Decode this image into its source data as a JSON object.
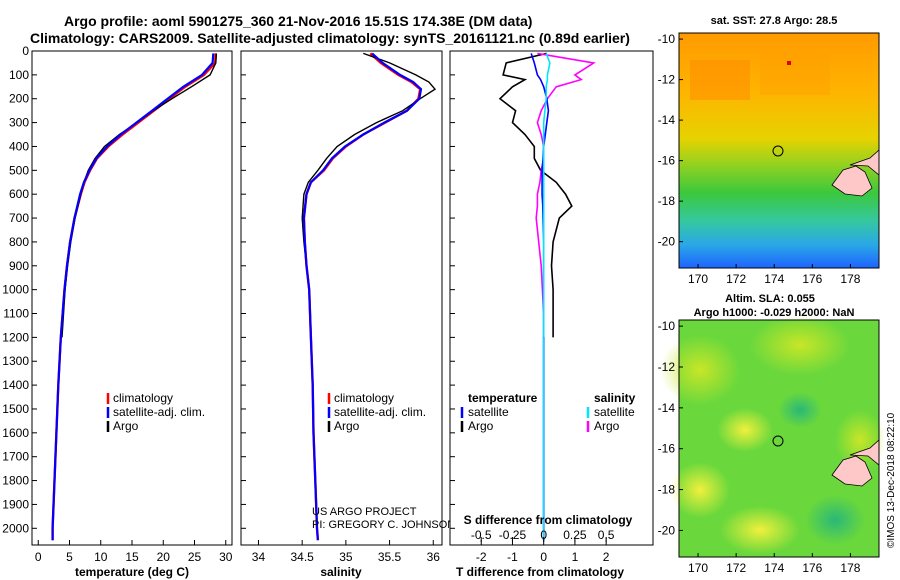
{
  "title": {
    "line1": "Argo profile: aoml 5901275_360 21-Nov-2016 15.51S 174.38E (DM data)",
    "line2": "Climatology: CARS2009. Satellite-adjusted climatology: synTS_20161121.nc (0.89d earlier)"
  },
  "credits": {
    "line1": "US ARGO PROJECT",
    "line2": "PI: GREGORY C. JOHNSON"
  },
  "footer": "©IMOS 13-Dec-2018 08:22:10",
  "colors": {
    "clim": "#ff0000",
    "sat": "#0000ff",
    "argo": "#000000",
    "cyan": "#00e5ff",
    "magenta": "#ff00ff"
  },
  "chart_data": [
    {
      "type": "line",
      "id": "temperature",
      "xlabel": "temperature (deg C)",
      "xlim": [
        -1,
        31
      ],
      "xticks": [
        0,
        5,
        10,
        15,
        20,
        25,
        30
      ],
      "ylim": [
        0,
        2070
      ],
      "yticks": [
        0,
        100,
        200,
        300,
        400,
        500,
        600,
        700,
        800,
        900,
        1000,
        1100,
        1200,
        1300,
        1400,
        1500,
        1600,
        1700,
        1800,
        1900,
        2000
      ],
      "depth": [
        10,
        50,
        100,
        150,
        200,
        250,
        300,
        350,
        400,
        450,
        500,
        550,
        600,
        700,
        800,
        900,
        1000,
        1200,
        1400,
        1600,
        1800,
        2000,
        2050
      ],
      "legend": [
        "climatology",
        "satellite-adj. clim.",
        "Argo"
      ],
      "series": [
        {
          "name": "climatology",
          "values": [
            28.4,
            28.3,
            26.5,
            23.5,
            21.0,
            18.5,
            16.0,
            13.5,
            11.2,
            9.4,
            8.3,
            7.4,
            6.8,
            5.8,
            5.1,
            4.6,
            4.2,
            3.6,
            3.2,
            2.9,
            2.6,
            2.3,
            2.3
          ]
        },
        {
          "name": "satellite-adj. clim.",
          "values": [
            28.0,
            27.9,
            26.2,
            23.2,
            20.7,
            18.2,
            15.7,
            13.2,
            11.0,
            9.3,
            8.2,
            7.3,
            6.7,
            5.8,
            5.1,
            4.6,
            4.2,
            3.6,
            3.2,
            2.9,
            2.6,
            2.3,
            2.3
          ]
        },
        {
          "name": "Argo",
          "values": [
            28.5,
            28.4,
            27.5,
            24.5,
            21.4,
            18.4,
            15.8,
            13.0,
            10.6,
            9.1,
            8.0,
            7.3,
            6.8,
            5.9,
            5.2,
            4.7,
            4.3,
            3.8,
            null,
            null,
            null,
            null,
            null
          ]
        }
      ]
    },
    {
      "type": "line",
      "id": "salinity",
      "xlabel": "salinity",
      "xlim": [
        33.8,
        36.1
      ],
      "xticks": [
        34,
        34.5,
        35,
        35.5,
        36
      ],
      "ylim": [
        0,
        2070
      ],
      "depth": [
        10,
        50,
        100,
        130,
        160,
        200,
        250,
        300,
        350,
        400,
        450,
        500,
        550,
        600,
        700,
        800,
        900,
        1000,
        1200,
        1400,
        1600,
        1800,
        2000,
        2050
      ],
      "legend": [
        "climatology",
        "satellite-adj. clim.",
        "Argo"
      ],
      "series": [
        {
          "name": "climatology",
          "values": [
            35.28,
            35.4,
            35.6,
            35.75,
            35.85,
            35.83,
            35.7,
            35.45,
            35.2,
            35.0,
            34.85,
            34.75,
            34.6,
            34.55,
            34.52,
            34.53,
            34.55,
            34.58,
            34.6,
            34.62,
            34.63,
            34.65,
            34.67,
            34.68
          ]
        },
        {
          "name": "satellite-adj. clim.",
          "values": [
            35.3,
            35.42,
            35.62,
            35.77,
            35.86,
            35.84,
            35.7,
            35.44,
            35.2,
            34.99,
            34.84,
            34.74,
            34.6,
            34.55,
            34.52,
            34.53,
            34.55,
            34.58,
            34.6,
            34.62,
            34.63,
            34.65,
            34.67,
            34.68
          ]
        },
        {
          "name": "Argo",
          "values": [
            35.2,
            35.5,
            35.8,
            35.95,
            36.02,
            35.85,
            35.65,
            35.35,
            35.1,
            34.9,
            34.78,
            34.68,
            34.57,
            34.52,
            34.5,
            34.52,
            34.55,
            34.58,
            34.6,
            null,
            null,
            null,
            null,
            null
          ]
        }
      ]
    },
    {
      "type": "line",
      "id": "differences",
      "xlabel": "T difference from climatology",
      "xlabel2": "S difference from climatology",
      "xlim_T": [
        -3,
        3.5
      ],
      "xticks_T": [
        -2,
        -1,
        0,
        1,
        2
      ],
      "xticks_S": [
        -0.5,
        -0.25,
        0,
        0.25,
        0.5
      ],
      "xtick_labels_S": [
        "-0.5",
        "-0.25",
        "0",
        "0.25",
        "0.5"
      ],
      "S_scale": 4,
      "ylim": [
        0,
        2070
      ],
      "legend_T_title": "temperature",
      "legend_S_title": "salinity",
      "legend_T": [
        "satellite",
        "Argo"
      ],
      "legend_S": [
        "satellite",
        "Argo"
      ],
      "depth": [
        10,
        50,
        100,
        120,
        150,
        200,
        250,
        300,
        350,
        400,
        450,
        500,
        550,
        600,
        650,
        700,
        800,
        900,
        1000,
        1100,
        1200
      ],
      "series": [
        {
          "name": "T satellite",
          "values": [
            -0.4,
            -0.3,
            -0.2,
            -0.1,
            0.0,
            0.1,
            0.15,
            0.1,
            0.05,
            0.0,
            -0.02,
            -0.05,
            -0.05,
            -0.05,
            -0.03,
            -0.02,
            0.0,
            0.0,
            0.0,
            0.0,
            0.0
          ]
        },
        {
          "name": "T Argo",
          "values": [
            0.1,
            -1.2,
            -1.3,
            -0.6,
            -1.0,
            -1.4,
            -0.9,
            -1.0,
            -0.6,
            -0.3,
            -0.3,
            -0.1,
            0.4,
            0.7,
            0.9,
            0.5,
            0.3,
            0.25,
            0.3,
            0.3,
            0.3
          ]
        },
        {
          "name": "S satellite",
          "values": [
            0.02,
            0.05,
            0.03,
            0.03,
            0.02,
            0.02,
            0.01,
            0.0,
            0.0,
            0.0,
            0.0,
            0.0,
            0.0,
            0.0,
            0.0,
            0.0,
            0.0,
            0.0,
            0.0,
            0.0,
            0.0
          ]
        },
        {
          "name": "S Argo",
          "values": [
            -0.05,
            0.4,
            0.25,
            0.3,
            0.1,
            0.03,
            -0.02,
            -0.05,
            -0.02,
            0.0,
            0.0,
            -0.02,
            -0.03,
            -0.05,
            -0.05,
            -0.06,
            -0.04,
            -0.02,
            -0.01,
            0.0,
            0.0
          ]
        }
      ]
    },
    {
      "type": "heatmap",
      "id": "sst-map",
      "title": "sat. SST: 27.8 Argo: 28.5",
      "xticks": [
        170,
        172,
        174,
        176,
        178
      ],
      "yticks": [
        -10,
        -12,
        -14,
        -16,
        -18,
        -20
      ],
      "xlim": [
        169,
        179.5
      ],
      "ylim": [
        -21.3,
        -9.7
      ],
      "argo_position": [
        174.38,
        -15.51
      ]
    },
    {
      "type": "heatmap",
      "id": "sla-map",
      "title_line1": "Altim. SLA: 0.055",
      "title_line2": "Argo h1000: -0.029 h2000: NaN",
      "xticks": [
        170,
        172,
        174,
        176,
        178
      ],
      "yticks": [
        -10,
        -12,
        -14,
        -16,
        -18,
        -20
      ],
      "xlim": [
        169,
        179.5
      ],
      "ylim": [
        -21.3,
        -9.7
      ],
      "argo_position": [
        174.38,
        -15.51
      ]
    }
  ]
}
